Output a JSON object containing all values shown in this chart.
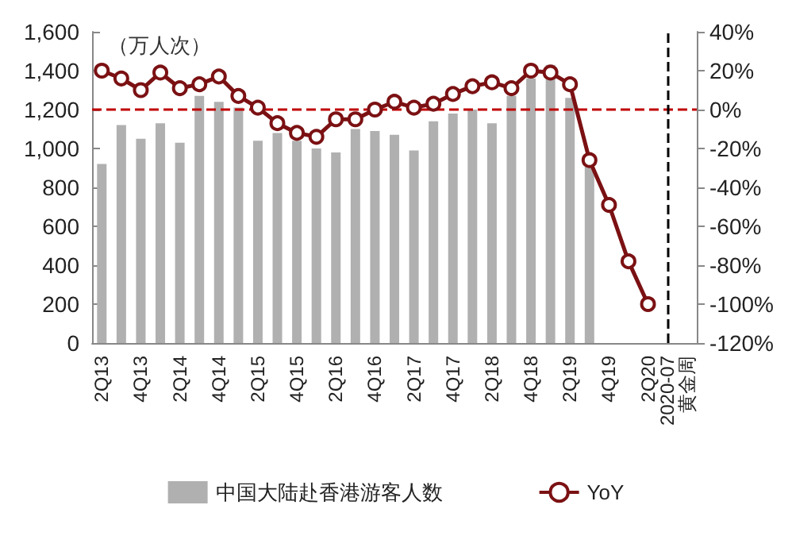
{
  "chart_data": {
    "type": "bar",
    "ylabel": "（万人次）",
    "categories": [
      "2Q13",
      null,
      "4Q13",
      null,
      "2Q14",
      null,
      "4Q14",
      null,
      "2Q15",
      null,
      "4Q15",
      null,
      "2Q16",
      null,
      "4Q16",
      null,
      "2Q17",
      null,
      "4Q17",
      null,
      "2Q18",
      null,
      "4Q18",
      null,
      "2Q19",
      null,
      "4Q19",
      null,
      "2Q20",
      "2020-07",
      "黄金周"
    ],
    "series": [
      {
        "name": "中国大陆赴香港游客人数",
        "color": "#b0b0b0",
        "values": [
          920,
          1120,
          1050,
          1130,
          1030,
          1270,
          1240,
          1210,
          1040,
          1080,
          1040,
          1000,
          980,
          1100,
          1090,
          1070,
          990,
          1140,
          1180,
          1200,
          1130,
          1270,
          1360,
          1430,
          1260,
          910,
          null,
          null,
          null,
          null,
          null
        ]
      },
      {
        "name": "YoY",
        "type": "line",
        "axis": "y2",
        "color": "#7b1113",
        "values": [
          20,
          16,
          10,
          19,
          11,
          13,
          17,
          7,
          1,
          -7,
          -12,
          -14,
          -5,
          -5,
          0,
          4,
          1,
          3,
          8,
          12,
          14,
          11,
          20,
          19,
          13,
          -26,
          -49,
          -78,
          -100,
          null,
          null
        ]
      }
    ],
    "ylim": [
      0,
      1600
    ],
    "yticks": [
      0,
      {
        "value": 200,
        "label": "200"
      },
      {
        "value": 400,
        "label": "400"
      },
      {
        "value": 600,
        "label": "600"
      },
      {
        "value": 800,
        "label": "800"
      },
      {
        "value": 1000,
        "label": "1,000"
      },
      {
        "value": 1200,
        "label": "1,200"
      },
      {
        "value": 1400,
        "label": "1,400"
      },
      {
        "value": 1600,
        "label": "1,600"
      }
    ],
    "y2lim": [
      -120,
      40
    ],
    "y2ticks": [
      {
        "value": -120,
        "label": "-120%"
      },
      {
        "value": -100,
        "label": "-100%"
      },
      {
        "value": -80,
        "label": "-80%"
      },
      {
        "value": -60,
        "label": "-60%"
      },
      {
        "value": -40,
        "label": "-40%"
      },
      {
        "value": -20,
        "label": "-20%"
      },
      {
        "value": 0,
        "label": "0%"
      },
      {
        "value": 20,
        "label": "20%"
      },
      {
        "value": 40,
        "label": "40%"
      }
    ],
    "ref_lines": [
      {
        "axis": "y2",
        "value": 0,
        "color": "#c00000",
        "line_style": "dashed"
      },
      {
        "axis": "x",
        "value": "2020-07",
        "color": "#000000",
        "line_style": "dashed"
      }
    ],
    "grid": false,
    "legend": "bottom",
    "marker": "circle"
  }
}
